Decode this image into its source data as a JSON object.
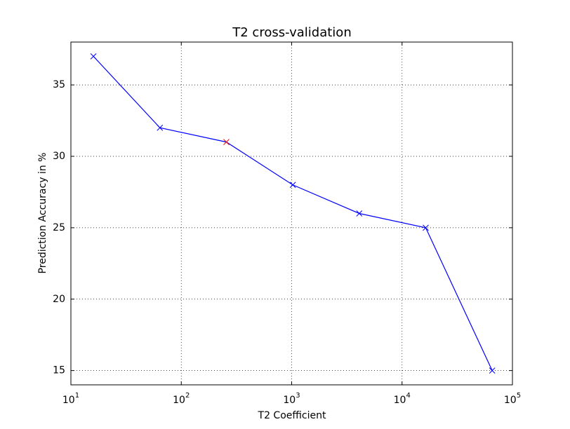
{
  "chart_data": {
    "type": "line",
    "title": "T2 cross-validation",
    "x_label": "T2 Coefficient",
    "y_label": "Prediction Accuracy in %",
    "x": [
      16,
      64,
      256,
      1024,
      4096,
      16384,
      65536
    ],
    "series": [
      {
        "color": "#0000ff",
        "marker": "x",
        "marker_colors": [
          "#0000ff",
          "#0000ff",
          "#ff0000",
          "#0000ff",
          "#0000ff",
          "#0000ff",
          "#0000ff"
        ],
        "values": [
          37,
          32,
          31,
          28,
          26,
          25,
          15
        ]
      }
    ],
    "xscale": "log",
    "xlim": [
      10,
      100000
    ],
    "xticks": [
      {
        "value": 10,
        "label": "10",
        "exponent": "1"
      },
      {
        "value": 100,
        "label": "10",
        "exponent": "2"
      },
      {
        "value": 1000,
        "label": "10",
        "exponent": "3"
      },
      {
        "value": 10000,
        "label": "10",
        "exponent": "4"
      },
      {
        "value": 100000,
        "label": "10",
        "exponent": "5"
      }
    ],
    "ylim": [
      14,
      38
    ],
    "yticks": [
      15,
      20,
      25,
      30,
      35
    ],
    "grid": true
  }
}
